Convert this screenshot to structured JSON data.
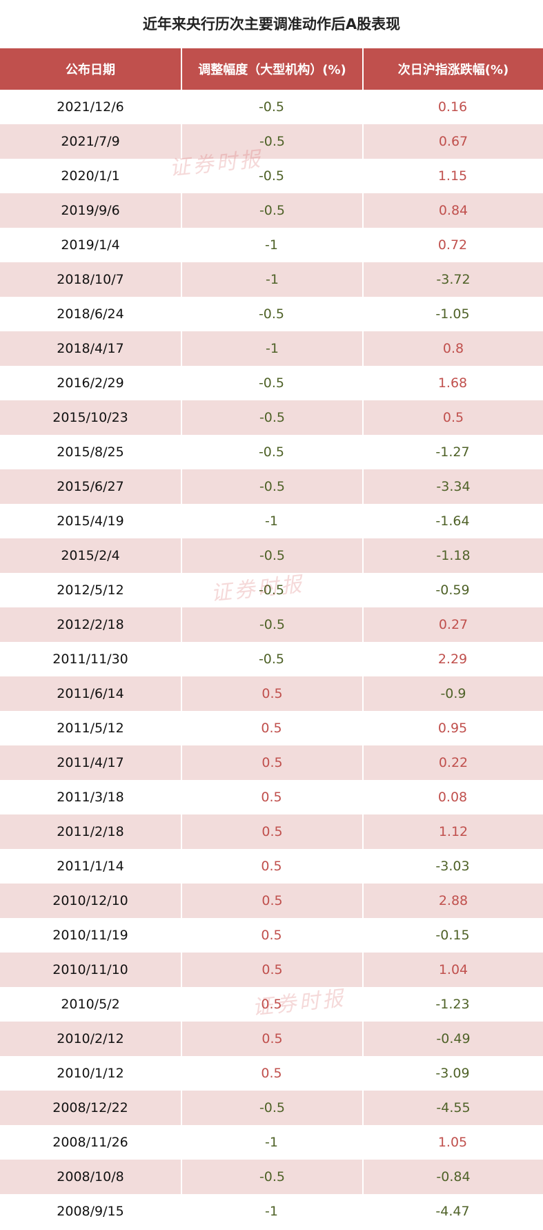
{
  "title": "近年来央行历次主要调准动作后A股表现",
  "headers": [
    "公布日期",
    "调整幅度（大型机构）(%)",
    "次日沪指涨跌幅(%)"
  ],
  "watermark": "证券时报",
  "colors": {
    "header_bg": "#c0504d",
    "alt_row": "#f2dcdb",
    "negative": "#4f6228",
    "positive": "#c0504d"
  },
  "rows": [
    {
      "date": "2021/12/6",
      "adj": "-0.5",
      "chg": "0.16"
    },
    {
      "date": "2021/7/9",
      "adj": "-0.5",
      "chg": "0.67"
    },
    {
      "date": "2020/1/1",
      "adj": "-0.5",
      "chg": "1.15"
    },
    {
      "date": "2019/9/6",
      "adj": "-0.5",
      "chg": "0.84"
    },
    {
      "date": "2019/1/4",
      "adj": "-1",
      "chg": "0.72"
    },
    {
      "date": "2018/10/7",
      "adj": "-1",
      "chg": "-3.72"
    },
    {
      "date": "2018/6/24",
      "adj": "-0.5",
      "chg": "-1.05"
    },
    {
      "date": "2018/4/17",
      "adj": "-1",
      "chg": "0.8"
    },
    {
      "date": "2016/2/29",
      "adj": "-0.5",
      "chg": "1.68"
    },
    {
      "date": "2015/10/23",
      "adj": "-0.5",
      "chg": "0.5"
    },
    {
      "date": "2015/8/25",
      "adj": "-0.5",
      "chg": "-1.27"
    },
    {
      "date": "2015/6/27",
      "adj": "-0.5",
      "chg": "-3.34"
    },
    {
      "date": "2015/4/19",
      "adj": "-1",
      "chg": "-1.64"
    },
    {
      "date": "2015/2/4",
      "adj": "-0.5",
      "chg": "-1.18"
    },
    {
      "date": "2012/5/12",
      "adj": "-0.5",
      "chg": "-0.59"
    },
    {
      "date": "2012/2/18",
      "adj": "-0.5",
      "chg": "0.27"
    },
    {
      "date": "2011/11/30",
      "adj": "-0.5",
      "chg": "2.29"
    },
    {
      "date": "2011/6/14",
      "adj": "0.5",
      "chg": "-0.9"
    },
    {
      "date": "2011/5/12",
      "adj": "0.5",
      "chg": "0.95"
    },
    {
      "date": "2011/4/17",
      "adj": "0.5",
      "chg": "0.22"
    },
    {
      "date": "2011/3/18",
      "adj": "0.5",
      "chg": "0.08"
    },
    {
      "date": "2011/2/18",
      "adj": "0.5",
      "chg": "1.12"
    },
    {
      "date": "2011/1/14",
      "adj": "0.5",
      "chg": "-3.03"
    },
    {
      "date": "2010/12/10",
      "adj": "0.5",
      "chg": "2.88"
    },
    {
      "date": "2010/11/19",
      "adj": "0.5",
      "chg": "-0.15"
    },
    {
      "date": "2010/11/10",
      "adj": "0.5",
      "chg": "1.04"
    },
    {
      "date": "2010/5/2",
      "adj": "0.5",
      "chg": "-1.23"
    },
    {
      "date": "2010/2/12",
      "adj": "0.5",
      "chg": "-0.49"
    },
    {
      "date": "2010/1/12",
      "adj": "0.5",
      "chg": "-3.09"
    },
    {
      "date": "2008/12/22",
      "adj": "-0.5",
      "chg": "-4.55"
    },
    {
      "date": "2008/11/26",
      "adj": "-1",
      "chg": "1.05"
    },
    {
      "date": "2008/10/8",
      "adj": "-0.5",
      "chg": "-0.84"
    },
    {
      "date": "2008/9/15",
      "adj": "-1",
      "chg": "-4.47"
    }
  ]
}
